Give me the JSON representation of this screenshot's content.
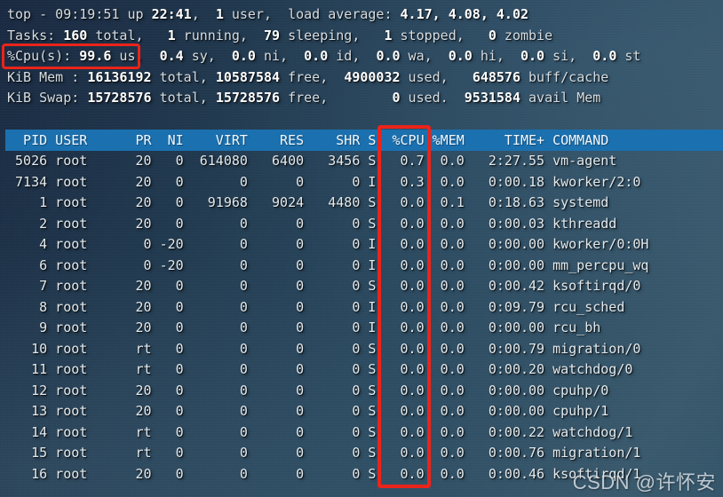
{
  "watermark": "CSDN @许怀安",
  "colors": {
    "header_bar_bg": "#1b70af",
    "annotation_red": "#ea241a",
    "background_top": "#1a2a42",
    "background_bottom": "#3a5a6e",
    "text_normal": "#d6dde2",
    "text_bold": "#ffffff"
  },
  "summary_lines": [
    [
      {
        "t": "top - 09:19:51 up ",
        "b": false
      },
      {
        "t": "22:41",
        "b": true
      },
      {
        "t": ",  ",
        "b": false
      },
      {
        "t": "1",
        "b": true
      },
      {
        "t": " user,  load average: ",
        "b": false
      },
      {
        "t": "4.17, 4.08, 4.02",
        "b": true
      }
    ],
    [
      {
        "t": "Tasks: ",
        "b": false
      },
      {
        "t": "160",
        "b": true
      },
      {
        "t": " total,   ",
        "b": false
      },
      {
        "t": "1",
        "b": true
      },
      {
        "t": " running,  ",
        "b": false
      },
      {
        "t": "79",
        "b": true
      },
      {
        "t": " sleeping,   ",
        "b": false
      },
      {
        "t": "1",
        "b": true
      },
      {
        "t": " stopped,   ",
        "b": false
      },
      {
        "t": "0",
        "b": true
      },
      {
        "t": " zombie",
        "b": false
      }
    ],
    [
      {
        "t": "%Cpu(s): ",
        "b": false
      },
      {
        "t": "99.6",
        "b": true
      },
      {
        "t": " us,  ",
        "b": false
      },
      {
        "t": "0.4",
        "b": true
      },
      {
        "t": " sy,  ",
        "b": false
      },
      {
        "t": "0.0",
        "b": true
      },
      {
        "t": " ni,  ",
        "b": false
      },
      {
        "t": "0.0",
        "b": true
      },
      {
        "t": " id,  ",
        "b": false
      },
      {
        "t": "0.0",
        "b": true
      },
      {
        "t": " wa,  ",
        "b": false
      },
      {
        "t": "0.0",
        "b": true
      },
      {
        "t": " hi,  ",
        "b": false
      },
      {
        "t": "0.0",
        "b": true
      },
      {
        "t": " si,  ",
        "b": false
      },
      {
        "t": "0.0",
        "b": true
      },
      {
        "t": " st",
        "b": false
      }
    ],
    [
      {
        "t": "KiB Mem : ",
        "b": false
      },
      {
        "t": "16136192",
        "b": true
      },
      {
        "t": " total, ",
        "b": false
      },
      {
        "t": "10587584",
        "b": true
      },
      {
        "t": " free,  ",
        "b": false
      },
      {
        "t": "4900032",
        "b": true
      },
      {
        "t": " used,   ",
        "b": false
      },
      {
        "t": "648576",
        "b": true
      },
      {
        "t": " buff/cache",
        "b": false
      }
    ],
    [
      {
        "t": "KiB Swap: ",
        "b": false
      },
      {
        "t": "15728576",
        "b": true
      },
      {
        "t": " total, ",
        "b": false
      },
      {
        "t": "15728576",
        "b": true
      },
      {
        "t": " free,        ",
        "b": false
      },
      {
        "t": "0",
        "b": true
      },
      {
        "t": " used.  ",
        "b": false
      },
      {
        "t": "9531584",
        "b": true
      },
      {
        "t": " avail Mem",
        "b": false
      }
    ]
  ],
  "process_table": {
    "columns": [
      "PID",
      "USER",
      "PR",
      "NI",
      "VIRT",
      "RES",
      "SHR",
      "S",
      "%CPU",
      "%MEM",
      "TIME+",
      "COMMAND"
    ],
    "rows": [
      [
        "5026",
        "root",
        "20",
        "0",
        "614080",
        "6400",
        "3456",
        "S",
        "0.7",
        "0.0",
        "2:27.55",
        "vm-agent"
      ],
      [
        "7134",
        "root",
        "20",
        "0",
        "0",
        "0",
        "0",
        "I",
        "0.3",
        "0.0",
        "0:00.18",
        "kworker/2:0"
      ],
      [
        "1",
        "root",
        "20",
        "0",
        "91968",
        "9024",
        "4480",
        "S",
        "0.0",
        "0.1",
        "0:18.63",
        "systemd"
      ],
      [
        "2",
        "root",
        "20",
        "0",
        "0",
        "0",
        "0",
        "S",
        "0.0",
        "0.0",
        "0:00.03",
        "kthreadd"
      ],
      [
        "4",
        "root",
        "0",
        "-20",
        "0",
        "0",
        "0",
        "I",
        "0.0",
        "0.0",
        "0:00.00",
        "kworker/0:0H"
      ],
      [
        "6",
        "root",
        "0",
        "-20",
        "0",
        "0",
        "0",
        "I",
        "0.0",
        "0.0",
        "0:00.00",
        "mm_percpu_wq"
      ],
      [
        "7",
        "root",
        "20",
        "0",
        "0",
        "0",
        "0",
        "S",
        "0.0",
        "0.0",
        "0:00.42",
        "ksoftirqd/0"
      ],
      [
        "8",
        "root",
        "20",
        "0",
        "0",
        "0",
        "0",
        "I",
        "0.0",
        "0.0",
        "0:09.79",
        "rcu_sched"
      ],
      [
        "9",
        "root",
        "20",
        "0",
        "0",
        "0",
        "0",
        "I",
        "0.0",
        "0.0",
        "0:00.00",
        "rcu_bh"
      ],
      [
        "10",
        "root",
        "rt",
        "0",
        "0",
        "0",
        "0",
        "S",
        "0.0",
        "0.0",
        "0:00.79",
        "migration/0"
      ],
      [
        "11",
        "root",
        "rt",
        "0",
        "0",
        "0",
        "0",
        "S",
        "0.0",
        "0.0",
        "0:00.20",
        "watchdog/0"
      ],
      [
        "12",
        "root",
        "20",
        "0",
        "0",
        "0",
        "0",
        "S",
        "0.0",
        "0.0",
        "0:00.00",
        "cpuhp/0"
      ],
      [
        "13",
        "root",
        "20",
        "0",
        "0",
        "0",
        "0",
        "S",
        "0.0",
        "0.0",
        "0:00.00",
        "cpuhp/1"
      ],
      [
        "14",
        "root",
        "rt",
        "0",
        "0",
        "0",
        "0",
        "S",
        "0.0",
        "0.0",
        "0:00.22",
        "watchdog/1"
      ],
      [
        "15",
        "root",
        "rt",
        "0",
        "0",
        "0",
        "0",
        "S",
        "0.0",
        "0.0",
        "0:00.76",
        "migration/1"
      ],
      [
        "16",
        "root",
        "20",
        "0",
        "0",
        "0",
        "0",
        "S",
        "0.0",
        "0.0",
        "0:00.46",
        "ksoftirqd/1"
      ]
    ]
  }
}
